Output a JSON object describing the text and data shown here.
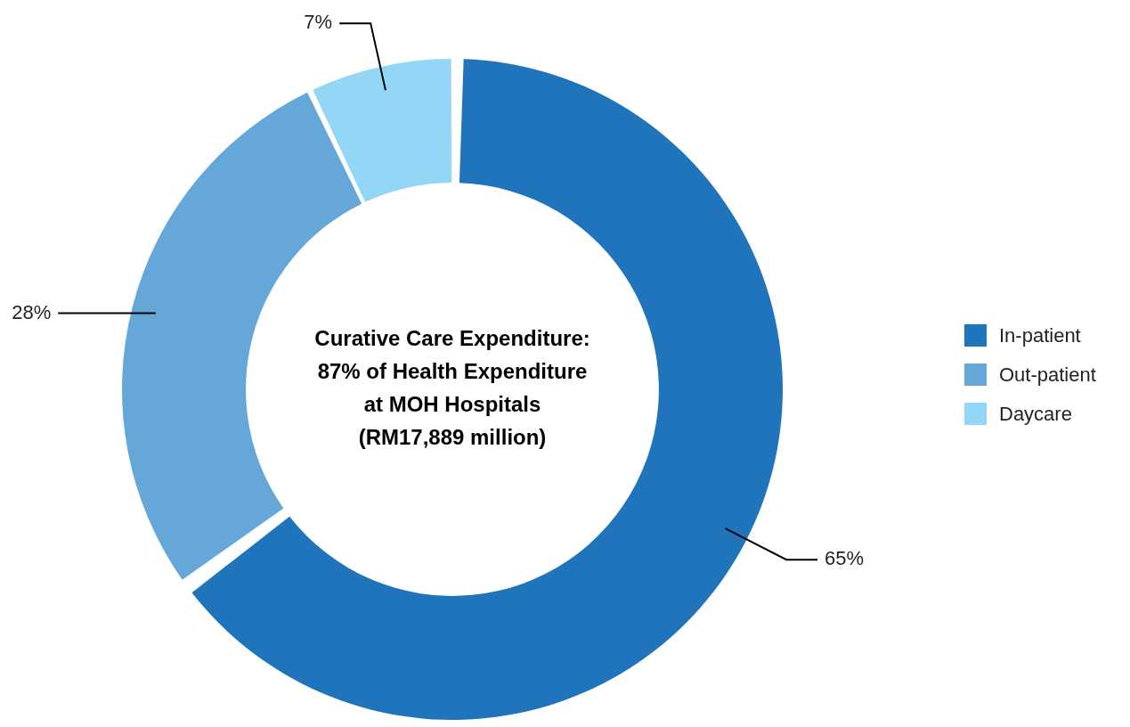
{
  "chart_data": {
    "type": "donut",
    "title": "Curative Care Expenditure:\n87% of Health Expenditure\nat MOH Hospitals\n(RM17,889 million)",
    "categories": [
      "In-patient",
      "Out-patient",
      "Daycare"
    ],
    "values": [
      65,
      28,
      7
    ],
    "colors": [
      "#1f74bb",
      "#66a7d9",
      "#93d6f5"
    ],
    "value_labels": [
      "65%",
      "28%",
      "7%"
    ],
    "legend": "right"
  }
}
